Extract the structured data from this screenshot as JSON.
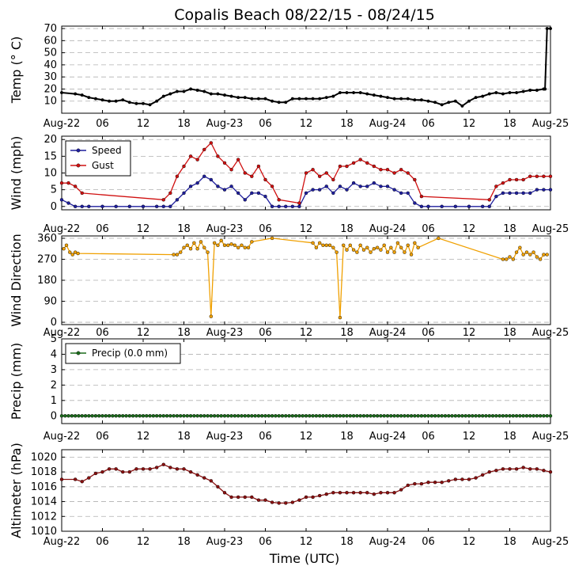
{
  "chart_data": [
    {
      "id": "temp",
      "type": "line",
      "title": "Copalis Beach 08/22/15 - 08/24/15",
      "xlabel": "",
      "ylabel": "Temp ($^\\circ$C)",
      "ylabel_display": "Temp (° C)",
      "xlim": [
        0,
        72
      ],
      "ylim": [
        0,
        72
      ],
      "yticks": [
        10,
        20,
        30,
        40,
        50,
        60,
        70
      ],
      "xtick_labels": [
        "Aug-22",
        "06",
        "12",
        "18",
        "Aug-23",
        "06",
        "12",
        "18",
        "Aug-24",
        "06",
        "12",
        "18",
        "Aug-25"
      ],
      "grid": true,
      "legend": null,
      "series": [
        {
          "name": "Temp",
          "color": "#000000",
          "x": [
            0,
            2,
            3,
            4,
            5,
            6,
            7,
            8,
            9,
            10,
            11,
            12,
            13,
            14,
            15,
            16,
            17,
            18,
            19,
            20,
            21,
            22,
            23,
            24,
            25,
            26,
            27,
            28,
            29,
            30,
            31,
            32,
            33,
            34,
            35,
            36,
            37,
            38,
            39,
            40,
            41,
            42,
            43,
            44,
            45,
            46,
            47,
            48,
            49,
            50,
            51,
            52,
            53,
            54,
            55,
            56,
            57,
            58,
            59,
            60,
            61,
            62,
            63,
            64,
            65,
            66,
            67,
            68,
            69,
            70,
            71,
            71.2,
            71.5,
            72
          ],
          "y": [
            17,
            16,
            15,
            13,
            12,
            11,
            10,
            10,
            11,
            9,
            8,
            8,
            7,
            10,
            14,
            16,
            18,
            18,
            20,
            19,
            18,
            16,
            16,
            15,
            14,
            13,
            13,
            12,
            12,
            12,
            10,
            9,
            9,
            12,
            12,
            12,
            12,
            12,
            13,
            14,
            17,
            17,
            17,
            17,
            16,
            15,
            14,
            13,
            12,
            12,
            12,
            11,
            11,
            10,
            9,
            7,
            9,
            10,
            6,
            10,
            13,
            14,
            16,
            17,
            16,
            17,
            17,
            18,
            19,
            19,
            20,
            20,
            70,
            70
          ]
        }
      ]
    },
    {
      "id": "wind",
      "type": "line",
      "title": "",
      "xlabel": "",
      "ylabel": "Wind (mph)",
      "xlim": [
        0,
        72
      ],
      "ylim": [
        -1,
        21
      ],
      "yticks": [
        0,
        5,
        10,
        15,
        20
      ],
      "xtick_labels": [
        "Aug-22",
        "06",
        "12",
        "18",
        "Aug-23",
        "06",
        "12",
        "18",
        "Aug-24",
        "06",
        "12",
        "18",
        "Aug-25"
      ],
      "grid": true,
      "legend": "top-left",
      "series": [
        {
          "name": "Speed",
          "color": "#1f1f9e",
          "x": [
            0,
            1,
            2,
            3,
            4,
            6,
            8,
            10,
            12,
            14,
            15,
            16,
            17,
            18,
            19,
            20,
            21,
            22,
            23,
            24,
            25,
            26,
            27,
            28,
            29,
            30,
            31,
            32,
            33,
            34,
            35,
            36,
            37,
            38,
            39,
            40,
            41,
            42,
            43,
            44,
            45,
            46,
            47,
            48,
            49,
            50,
            51,
            52,
            53,
            54,
            56,
            58,
            60,
            62,
            63,
            64,
            65,
            66,
            67,
            68,
            69,
            70,
            71,
            72
          ],
          "y": [
            2,
            1,
            0,
            0,
            0,
            0,
            0,
            0,
            0,
            0,
            0,
            0,
            2,
            4,
            6,
            7,
            9,
            8,
            6,
            5,
            6,
            4,
            2,
            4,
            4,
            3,
            0,
            0,
            0,
            0,
            0,
            4,
            5,
            5,
            6,
            4,
            6,
            5,
            7,
            6,
            6,
            7,
            6,
            6,
            5,
            4,
            4,
            1,
            0,
            0,
            0,
            0,
            0,
            0,
            0,
            3,
            4,
            4,
            4,
            4,
            4,
            5,
            5,
            5
          ]
        },
        {
          "name": "Gust",
          "color": "#d01010",
          "x": [
            0,
            1,
            2,
            3,
            15,
            16,
            17,
            18,
            19,
            20,
            21,
            22,
            23,
            24,
            25,
            26,
            27,
            28,
            29,
            30,
            31,
            32,
            35,
            36,
            37,
            38,
            39,
            40,
            41,
            42,
            43,
            44,
            45,
            46,
            47,
            48,
            49,
            50,
            51,
            52,
            53,
            63,
            64,
            65,
            66,
            67,
            68,
            69,
            70,
            71,
            72
          ],
          "y": [
            7,
            7,
            6,
            4,
            2,
            4,
            9,
            12,
            15,
            14,
            17,
            19,
            15,
            13,
            11,
            14,
            10,
            9,
            12,
            8,
            6,
            2,
            1,
            10,
            11,
            9,
            10,
            8,
            12,
            12,
            13,
            14,
            13,
            12,
            11,
            11,
            10,
            11,
            10,
            8,
            3,
            2,
            6,
            7,
            8,
            8,
            8,
            9,
            9,
            9,
            9
          ]
        }
      ]
    },
    {
      "id": "winddir",
      "type": "scatter",
      "title": "",
      "xlabel": "",
      "ylabel": "Wind Direction",
      "xlim": [
        0,
        72
      ],
      "ylim": [
        -10,
        370
      ],
      "yticks": [
        0,
        90,
        180,
        270,
        360
      ],
      "xtick_labels": [
        "Aug-22",
        "06",
        "12",
        "18",
        "Aug-23",
        "06",
        "12",
        "18",
        "Aug-24",
        "06",
        "12",
        "18",
        "Aug-25"
      ],
      "grid": true,
      "legend": null,
      "series": [
        {
          "name": "Wind Direction",
          "color": "#f0a000",
          "x": [
            0.3,
            0.7,
            1.2,
            1.6,
            2.0,
            2.4,
            16.5,
            17,
            17.5,
            18,
            18.5,
            19,
            19.5,
            20,
            20.5,
            21,
            21.5,
            22,
            22.5,
            23,
            23.5,
            24,
            24.5,
            25,
            25.5,
            26,
            26.5,
            27,
            27.5,
            28,
            31,
            37,
            37.5,
            38,
            38.5,
            39,
            39.5,
            40,
            40.5,
            41,
            41.5,
            42,
            42.5,
            43,
            43.5,
            44,
            44.5,
            45,
            45.5,
            46,
            46.5,
            47,
            47.5,
            48,
            48.5,
            49,
            49.5,
            50,
            50.5,
            51,
            51.5,
            52,
            52.5,
            55.5,
            65,
            65.5,
            66,
            66.5,
            67,
            67.5,
            68,
            68.5,
            69,
            69.5,
            70,
            70.5,
            71,
            71.5
          ],
          "y": [
            315,
            330,
            300,
            290,
            300,
            295,
            290,
            290,
            300,
            320,
            330,
            315,
            340,
            315,
            345,
            320,
            300,
            25,
            340,
            330,
            350,
            330,
            330,
            335,
            330,
            320,
            330,
            320,
            320,
            345,
            360,
            340,
            320,
            340,
            330,
            330,
            330,
            320,
            300,
            20,
            330,
            310,
            330,
            310,
            300,
            330,
            310,
            320,
            300,
            315,
            320,
            310,
            330,
            300,
            320,
            300,
            340,
            320,
            300,
            330,
            290,
            340,
            320,
            360,
            270,
            270,
            280,
            270,
            300,
            320,
            290,
            300,
            290,
            300,
            280,
            270,
            290,
            290
          ]
        }
      ]
    },
    {
      "id": "precip",
      "type": "line",
      "title": "",
      "xlabel": "",
      "ylabel": "Precip (mm)",
      "xlim": [
        0,
        72
      ],
      "ylim": [
        -0.5,
        5
      ],
      "yticks": [
        0,
        1,
        2,
        3,
        4,
        5
      ],
      "xtick_labels": [
        "Aug-22",
        "06",
        "12",
        "18",
        "Aug-23",
        "06",
        "12",
        "18",
        "Aug-24",
        "06",
        "12",
        "18",
        "Aug-25"
      ],
      "grid": true,
      "legend": "top-left",
      "series": [
        {
          "name": "Precip (0.0 mm)",
          "color": "#1a6b1a",
          "x": [
            0,
            72
          ],
          "y": [
            0,
            0
          ]
        }
      ]
    },
    {
      "id": "altimeter",
      "type": "line",
      "title": "",
      "xlabel": "Time (UTC)",
      "ylabel": "Altimeter (hPa)",
      "xlim": [
        0,
        72
      ],
      "ylim": [
        1010,
        1021
      ],
      "yticks": [
        1010,
        1012,
        1014,
        1016,
        1018,
        1020
      ],
      "xtick_labels": [
        "Aug-22",
        "06",
        "12",
        "18",
        "Aug-23",
        "06",
        "12",
        "18",
        "Aug-24",
        "06",
        "12",
        "18",
        "Aug-25"
      ],
      "grid": true,
      "legend": null,
      "series": [
        {
          "name": "Altimeter",
          "color": "#8b1010",
          "x": [
            0,
            2,
            3,
            4,
            5,
            6,
            7,
            8,
            9,
            10,
            11,
            12,
            13,
            14,
            15,
            16,
            17,
            18,
            19,
            20,
            21,
            22,
            23,
            24,
            25,
            26,
            27,
            28,
            29,
            30,
            31,
            32,
            33,
            34,
            35,
            36,
            37,
            38,
            39,
            40,
            41,
            42,
            43,
            44,
            45,
            46,
            47,
            48,
            49,
            50,
            51,
            52,
            53,
            54,
            55,
            56,
            57,
            58,
            59,
            60,
            61,
            62,
            63,
            64,
            65,
            66,
            67,
            68,
            69,
            70,
            71,
            72
          ],
          "y": [
            1017,
            1017,
            1016.7,
            1017.2,
            1017.8,
            1018,
            1018.4,
            1018.4,
            1018,
            1018,
            1018.4,
            1018.4,
            1018.4,
            1018.6,
            1019,
            1018.6,
            1018.4,
            1018.4,
            1018,
            1017.6,
            1017.2,
            1016.8,
            1016,
            1015.2,
            1014.6,
            1014.6,
            1014.6,
            1014.6,
            1014.2,
            1014.2,
            1013.9,
            1013.8,
            1013.8,
            1013.9,
            1014.2,
            1014.6,
            1014.6,
            1014.8,
            1015,
            1015.2,
            1015.2,
            1015.2,
            1015.2,
            1015.2,
            1015.2,
            1015.0,
            1015.2,
            1015.2,
            1015.2,
            1015.6,
            1016.2,
            1016.4,
            1016.4,
            1016.6,
            1016.6,
            1016.6,
            1016.8,
            1017,
            1017,
            1017,
            1017.2,
            1017.6,
            1018,
            1018.2,
            1018.4,
            1018.4,
            1018.4,
            1018.6,
            1018.4,
            1018.4,
            1018.2,
            1018
          ]
        }
      ]
    }
  ]
}
